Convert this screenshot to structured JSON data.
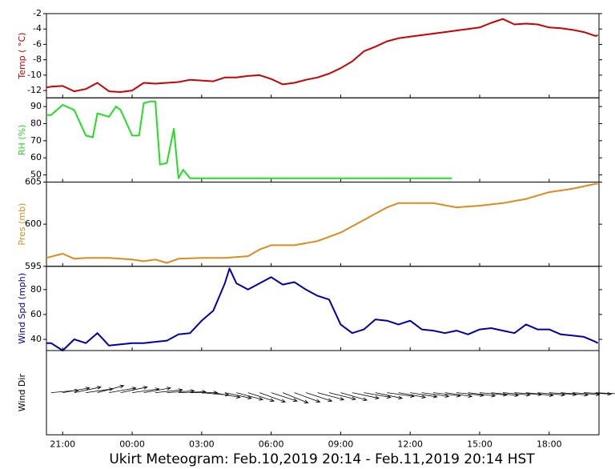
{
  "title": "Ukirt Meteogram:  Feb.10,2019 20:14 - Feb.11,2019 20:14 HST",
  "chart_data": [
    {
      "type": "line",
      "ylabel": "Temp ( °C)",
      "color": "#cc0000",
      "x": [
        20.3,
        20.5,
        21,
        21.5,
        22,
        22.5,
        23,
        23.5,
        24,
        24.5,
        25,
        25.5,
        26,
        26.5,
        27,
        27.5,
        28,
        28.5,
        29,
        29.5,
        30,
        30.5,
        31,
        31.5,
        32,
        32.5,
        33,
        33.5,
        34,
        34.5,
        35,
        35.5,
        36,
        36.5,
        37,
        37.5,
        38,
        38.5,
        39,
        39.5,
        40,
        40.5,
        41,
        41.5,
        42,
        42.5,
        43,
        43.5,
        44,
        44.1
      ],
      "values": [
        -11.6,
        -11.5,
        -11.4,
        -12.1,
        -11.8,
        -11.0,
        -12.1,
        -12.2,
        -12.0,
        -11.0,
        -11.1,
        -11.0,
        -10.9,
        -10.6,
        -10.7,
        -10.8,
        -10.3,
        -10.3,
        -10.1,
        -10.0,
        -10.5,
        -11.2,
        -11.0,
        -10.6,
        -10.3,
        -9.8,
        -9.1,
        -8.2,
        -6.9,
        -6.3,
        -5.6,
        -5.2,
        -5.0,
        -4.8,
        -4.6,
        -4.4,
        -4.2,
        -4.0,
        -3.8,
        -3.2,
        -2.7,
        -3.4,
        -3.3,
        -3.4,
        -3.8,
        -3.9,
        -4.1,
        -4.4,
        -4.9,
        -4.8
      ],
      "ylim": [
        -12.95,
        -2
      ],
      "yticks": [
        -2,
        -4,
        -6,
        -8,
        -10,
        -12
      ]
    },
    {
      "type": "line",
      "ylabel": "RH (%)",
      "color": "#22dd22",
      "x": [
        20.3,
        20.5,
        21,
        21.5,
        22,
        22.3,
        22.5,
        23,
        23.3,
        23.5,
        24,
        24.3,
        24.5,
        24.8,
        25,
        25.2,
        25.5,
        25.8,
        26,
        26.2,
        26.5,
        27,
        30,
        33,
        36,
        37.8
      ],
      "values": [
        85,
        85,
        91,
        88,
        73,
        72,
        86,
        84,
        90,
        88,
        73,
        73,
        92,
        93,
        93,
        56,
        57,
        77,
        48,
        53,
        48,
        48,
        48,
        48,
        48,
        48
      ],
      "ylim": [
        45.8,
        95.1
      ],
      "yticks": [
        50,
        60,
        70,
        80,
        90
      ]
    },
    {
      "type": "line",
      "ylabel": "Pres (mb)",
      "color": "#e08a1e",
      "x": [
        20.3,
        21,
        21.5,
        22,
        23,
        24,
        24.5,
        25,
        25.5,
        26,
        27,
        28,
        29,
        29.5,
        30,
        31,
        32,
        33,
        34,
        35,
        35.5,
        36,
        37,
        38,
        39,
        40,
        41,
        42,
        43,
        44,
        44.1
      ],
      "values": [
        596,
        596.5,
        595.9,
        596,
        596,
        595.8,
        595.6,
        595.8,
        595.4,
        595.9,
        596,
        596,
        596.2,
        597,
        597.5,
        597.5,
        598,
        599,
        600.5,
        602,
        602.5,
        602.5,
        602.5,
        602,
        602.2,
        602.5,
        603,
        603.8,
        604.2,
        604.8,
        604.8
      ],
      "ylim": [
        595,
        605
      ],
      "yticks": [
        595,
        600,
        605
      ]
    },
    {
      "type": "line",
      "ylabel": "Wind Spd (mph)",
      "color": "#0000aa",
      "x": [
        20.3,
        20.5,
        21,
        21.5,
        22,
        22.5,
        23,
        23.5,
        24,
        24.5,
        25,
        25.5,
        26,
        26.5,
        27,
        27.5,
        28,
        28.2,
        28.5,
        29,
        29.5,
        30,
        30.5,
        31,
        31.5,
        32,
        32.5,
        33,
        33.5,
        34,
        34.5,
        35,
        35.5,
        36,
        36.5,
        37,
        37.5,
        38,
        38.5,
        39,
        39.5,
        40,
        40.5,
        41,
        41.5,
        42,
        42.5,
        43,
        43.5,
        44,
        44.1
      ],
      "values": [
        37,
        37,
        31,
        40,
        37,
        45,
        35,
        36,
        37,
        37,
        38,
        39,
        44,
        45,
        55,
        63,
        85,
        97,
        85,
        80,
        85,
        90,
        84,
        86,
        80,
        75,
        72,
        52,
        45,
        48,
        56,
        55,
        52,
        55,
        48,
        47,
        45,
        47,
        44,
        48,
        49,
        47,
        45,
        52,
        48,
        48,
        44,
        43,
        42,
        38,
        37
      ],
      "ylim": [
        31,
        98.7
      ],
      "yticks": [
        40,
        60,
        80
      ]
    },
    {
      "type": "quiver",
      "ylabel": "Wind Dir",
      "x": [
        20.5,
        21,
        21.5,
        22,
        22.5,
        23,
        23.5,
        24,
        24.5,
        25,
        25.5,
        26,
        26.5,
        27,
        27.5,
        28,
        28.5,
        29,
        29.5,
        30,
        30.5,
        31,
        31.5,
        32,
        32.5,
        33,
        33.5,
        34,
        34.5,
        35,
        35.5,
        36,
        36.5,
        37,
        37.5,
        38,
        38.5,
        39,
        39.5,
        40,
        40.5,
        41,
        41.5,
        42,
        42.5,
        43,
        43.5,
        44
      ],
      "angles": [
        5,
        10,
        12,
        8,
        15,
        10,
        12,
        8,
        10,
        6,
        4,
        2,
        0,
        -5,
        -10,
        -12,
        -15,
        -18,
        -20,
        -18,
        -22,
        -20,
        -18,
        -15,
        -14,
        -16,
        -12,
        -10,
        -12,
        -8,
        -10,
        -9,
        -8,
        -7,
        -8,
        -6,
        -7,
        -5,
        -6,
        -5,
        -4,
        -6,
        -5,
        -4,
        -5,
        -4,
        -3,
        -3
      ],
      "xlim": [
        20.3,
        44.15
      ],
      "xticks": [
        {
          "value": 21,
          "label": "21:00"
        },
        {
          "value": 24,
          "label": "00:00"
        },
        {
          "value": 27,
          "label": "03:00"
        },
        {
          "value": 30,
          "label": "06:00"
        },
        {
          "value": 33,
          "label": "09:00"
        },
        {
          "value": 36,
          "label": "12:00"
        },
        {
          "value": 39,
          "label": "15:00"
        },
        {
          "value": 42,
          "label": "18:00"
        }
      ]
    }
  ]
}
